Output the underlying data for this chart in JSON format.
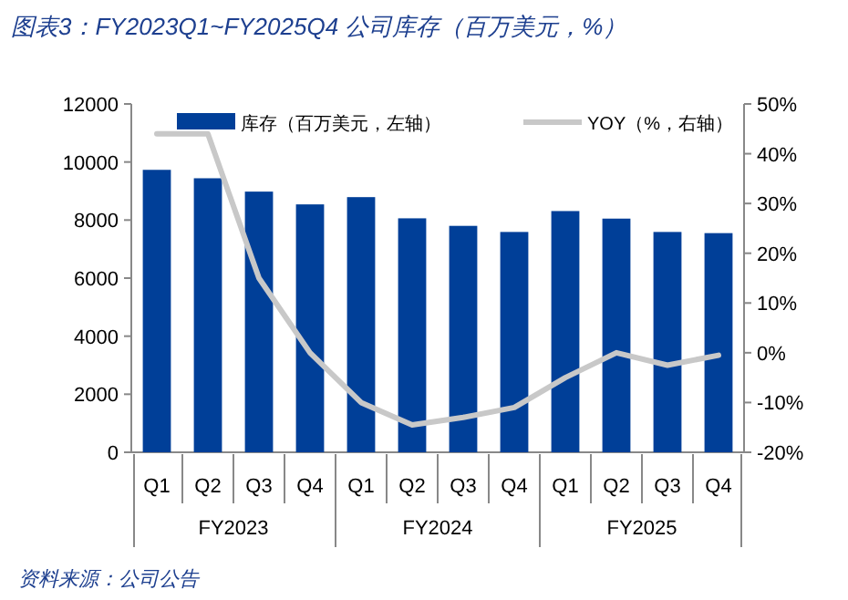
{
  "chart_data": {
    "type": "bar",
    "title": "图表3：FY2023Q1~FY2025Q4 公司库存（百万美元，%）",
    "categories": [
      "Q1",
      "Q2",
      "Q3",
      "Q4",
      "Q1",
      "Q2",
      "Q3",
      "Q4",
      "Q1",
      "Q2",
      "Q3",
      "Q4"
    ],
    "series": [
      {
        "name": "库存（百万美元，左轴）",
        "color": "#003f98",
        "values": [
          9730,
          9440,
          8980,
          8540,
          8790,
          8060,
          7800,
          7590,
          8310,
          8050,
          7590,
          7550
        ]
      },
      {
        "name": "YOY（%，右轴）",
        "color": "#c8c8c8",
        "type": "line",
        "axis": "y2",
        "values": [
          44,
          44,
          15,
          0,
          -10,
          -14.5,
          -13,
          -11,
          -5,
          0,
          -2.5,
          -0.5
        ]
      }
    ],
    "ylim": [
      0,
      12000
    ],
    "yticks": [
      0,
      2000,
      4000,
      6000,
      8000,
      10000,
      12000
    ],
    "y2lim": [
      -20,
      50
    ],
    "y2ticks": [
      {
        "value": -20,
        "label": "-20%"
      },
      {
        "value": -10,
        "label": "-10%"
      },
      {
        "value": 0,
        "label": "0%"
      },
      {
        "value": 10,
        "label": "10%"
      },
      {
        "value": 20,
        "label": "20%"
      },
      {
        "value": 30,
        "label": "30%"
      },
      {
        "value": 40,
        "label": "40%"
      },
      {
        "value": 50,
        "label": "50%"
      }
    ],
    "annotations": [
      "FY2023",
      "FY2024",
      "FY2025",
      "资料来源：公司公告"
    ],
    "legend": "top",
    "grid": false,
    "marker": "none",
    "line_style": "solid"
  }
}
